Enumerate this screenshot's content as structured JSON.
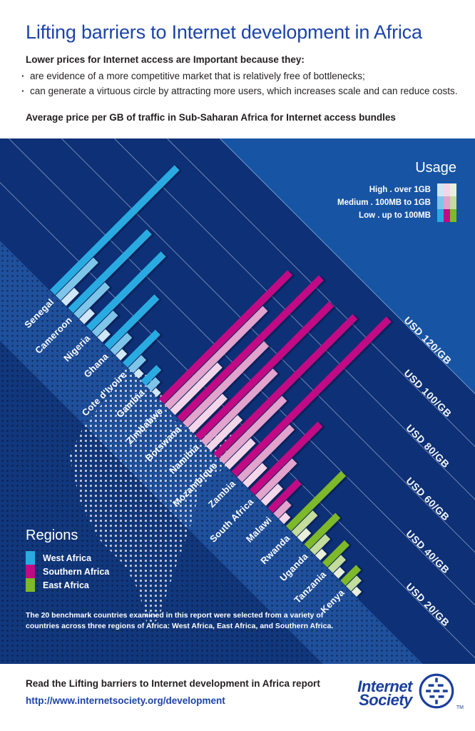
{
  "header": {
    "title": "Lifting barriers to Internet development in Africa",
    "intro_heading": "Lower prices for Internet access are Important because they:",
    "bullets": [
      "are evidence of a more competitive market that is relatively free of bottlenecks;",
      "can generate a virtuous circle by attracting more users, which increases scale and can reduce costs."
    ],
    "chart_title": "Average price per GB of traffic in Sub-Saharan Africa for Internet access bundles"
  },
  "usage_legend": {
    "title": "Usage",
    "rows": [
      {
        "label": "High . over 1GB",
        "level": "high"
      },
      {
        "label": "Medium . 100MB to 1GB",
        "level": "medium"
      },
      {
        "label": "Low . up to 100MB",
        "level": "low"
      }
    ]
  },
  "regions_legend": {
    "title": "Regions",
    "items": [
      {
        "label": "West Africa",
        "region": "west"
      },
      {
        "label": "Southern Africa",
        "region": "south"
      },
      {
        "label": "East Africa",
        "region": "east"
      }
    ]
  },
  "note": "The 20 benchmark countries examined in this report were selected from a variety of countries across three regions of Africa: West Africa, East Africa, and Southern Africa.",
  "footer": {
    "read_text": "Read the Lifting barriers to Internet development in Africa report",
    "url": "http://www.internetsociety.org/development",
    "logo_line1": "Internet",
    "logo_line2": "Society",
    "trademark": "TM"
  },
  "colors": {
    "accent_blue": "#1c44a9",
    "chart_navy": "#0d3076",
    "label_band_blue": "#1f509c",
    "upper_light_blue": "#1854a4",
    "west": {
      "low": "#29abe2",
      "medium": "#7fc5ea",
      "high": "#cfe7f7"
    },
    "south": {
      "low": "#c10a84",
      "medium": "#e2a3cd",
      "high": "#f3d6e9"
    },
    "east": {
      "low": "#7db928",
      "medium": "#c4dc9c",
      "high": "#e9f0da"
    }
  },
  "chart_data": {
    "type": "bar",
    "title": "Average price per GB of traffic in Sub-Saharan Africa for Internet access bundles",
    "unit": "USD per GB",
    "layout": "horizontal bar chart rotated -45deg; bars point up-right, one group of three usage bars per country",
    "legend_position": "top-right (usage) and bottom-left (regions)",
    "grid": true,
    "value_axis_ticks": [
      {
        "usd": 20,
        "label": "USD 20/GB"
      },
      {
        "usd": 40,
        "label": "USD 40/GB"
      },
      {
        "usd": 60,
        "label": "USD 60/GB"
      },
      {
        "usd": 80,
        "label": "USD 80/GB"
      },
      {
        "usd": 100,
        "label": "USD 100/GB"
      },
      {
        "usd": 120,
        "label": "USD 120/GB"
      }
    ],
    "value_axis_range": [
      0,
      130
    ],
    "series_levels": [
      "low",
      "medium",
      "high"
    ],
    "countries": [
      {
        "name": "Senegal",
        "region": "west",
        "low": 95,
        "medium": 29,
        "high": 10
      },
      {
        "name": "Cameroon",
        "region": "west",
        "low": 60,
        "medium": 24,
        "high": 8
      },
      {
        "name": "Nigeria",
        "region": "west",
        "low": 57,
        "medium": 16,
        "high": 6
      },
      {
        "name": "Ghana",
        "region": "west",
        "low": 38,
        "medium": 13,
        "high": 5
      },
      {
        "name": "Cote d'Ivoire",
        "region": "west",
        "low": 25,
        "medium": 10,
        "high": 4
      },
      {
        "name": "Gambia",
        "region": "west",
        "low": 12,
        "medium": 7,
        "high": 3
      },
      {
        "name": "Zimbabwe",
        "region": "south",
        "low": 98,
        "medium": 75,
        "high": 36
      },
      {
        "name": "Botswana",
        "region": "south",
        "low": 108,
        "medium": 62,
        "high": 26
      },
      {
        "name": "Namibia",
        "region": "south",
        "low": 102,
        "medium": 55,
        "high": 24
      },
      {
        "name": "Mozambique",
        "region": "south",
        "low": 106,
        "medium": 48,
        "high": 20
      },
      {
        "name": "Zambia",
        "region": "south",
        "low": 118,
        "medium": 40,
        "high": 15
      },
      {
        "name": "South Africa",
        "region": "south",
        "low": 52,
        "medium": 28,
        "high": 13
      },
      {
        "name": "Malawi",
        "region": "south",
        "low": 22,
        "medium": 10,
        "high": 5
      },
      {
        "name": "Rwanda",
        "region": "east",
        "low": 42,
        "medium": 16,
        "high": 7
      },
      {
        "name": "Uganda",
        "region": "east",
        "low": 24,
        "medium": 12,
        "high": 5
      },
      {
        "name": "Tanzania",
        "region": "east",
        "low": 17,
        "medium": 10,
        "high": 5
      },
      {
        "name": "Kenya",
        "region": "east",
        "low": 12,
        "medium": 8,
        "high": 4
      }
    ]
  }
}
